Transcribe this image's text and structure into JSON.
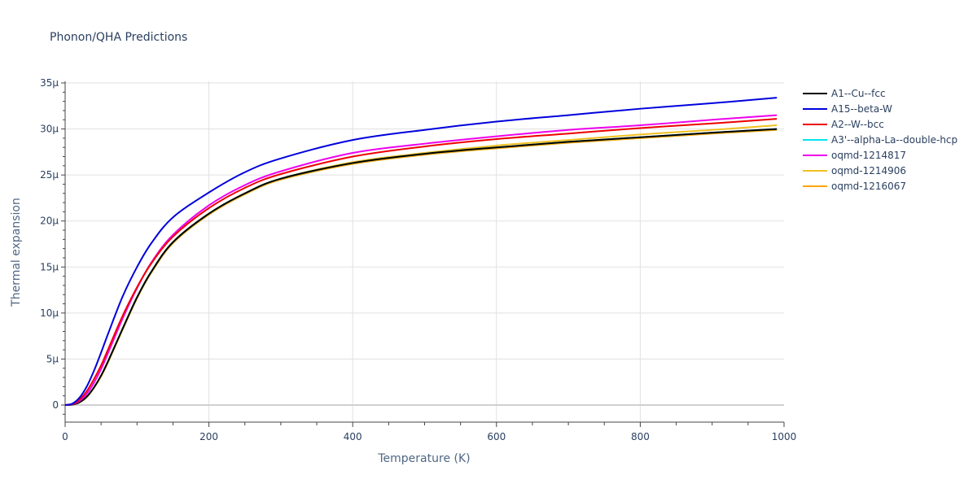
{
  "chart": {
    "title": "Phonon/QHA Predictions"
  },
  "chart_data": {
    "type": "line",
    "title": "Phonon/QHA Predictions",
    "xlabel": "Temperature (K)",
    "ylabel": "Thermal expansion",
    "xlim": [
      0,
      1000
    ],
    "ylim": [
      -1.8e-06,
      3.5e-05
    ],
    "x_ticks": [
      0,
      200,
      400,
      600,
      800,
      1000
    ],
    "x_tick_labels": [
      "0",
      "200",
      "400",
      "600",
      "800",
      "1000"
    ],
    "y_ticks": [
      0,
      5e-06,
      1e-05,
      1.5e-05,
      2e-05,
      2.5e-05,
      3e-05,
      3.5e-05
    ],
    "y_tick_labels": [
      "0",
      "5μ",
      "10μ",
      "15μ",
      "20μ",
      "25μ",
      "30μ",
      "35μ"
    ],
    "grid": true,
    "legend_position": "right",
    "x": [
      0,
      10,
      20,
      30,
      40,
      50,
      60,
      80,
      100,
      120,
      150,
      200,
      250,
      300,
      400,
      500,
      600,
      700,
      800,
      900,
      990
    ],
    "series": [
      {
        "name": "A1--Cu--fcc",
        "color": "#000000",
        "values": [
          0,
          0.05,
          0.3,
          0.9,
          1.9,
          3.2,
          4.8,
          8.3,
          11.7,
          14.5,
          17.7,
          20.8,
          23.0,
          24.6,
          26.3,
          27.3,
          28.0,
          28.6,
          29.1,
          29.6,
          30.0
        ]
      },
      {
        "name": "A15--beta-W",
        "color": "#0000dd",
        "values": [
          0,
          0.15,
          0.8,
          2.0,
          3.7,
          5.7,
          7.8,
          11.8,
          15.0,
          17.6,
          20.4,
          23.1,
          25.3,
          26.8,
          28.8,
          29.9,
          30.8,
          31.5,
          32.2,
          32.8,
          33.4
        ]
      },
      {
        "name": "A2--W--bcc",
        "color": "#ee0000",
        "values": [
          0,
          0.1,
          0.6,
          1.5,
          2.8,
          4.3,
          6.1,
          9.7,
          12.8,
          15.4,
          18.3,
          21.4,
          23.6,
          25.1,
          27.0,
          28.1,
          28.9,
          29.5,
          30.1,
          30.6,
          31.1
        ]
      },
      {
        "name": "A3'--alpha-La--double-hcp",
        "color": "#00e5ee",
        "values": [
          0,
          0.05,
          0.3,
          0.9,
          1.9,
          3.2,
          4.8,
          8.3,
          11.7,
          14.5,
          17.7,
          20.8,
          23.0,
          24.6,
          26.3,
          27.3,
          28.0,
          28.6,
          29.1,
          29.6,
          30.0
        ]
      },
      {
        "name": "oqmd-1214817",
        "color": "#ee00ee",
        "values": [
          0,
          0.08,
          0.45,
          1.2,
          2.4,
          3.9,
          5.7,
          9.4,
          12.7,
          15.5,
          18.5,
          21.7,
          23.9,
          25.4,
          27.4,
          28.4,
          29.2,
          29.9,
          30.4,
          31.0,
          31.5
        ]
      },
      {
        "name": "oqmd-1214906",
        "color": "#f0c020",
        "values": [
          0,
          0.05,
          0.3,
          0.9,
          1.9,
          3.2,
          4.8,
          8.3,
          11.7,
          14.5,
          17.7,
          20.8,
          23.0,
          24.6,
          26.4,
          27.4,
          28.2,
          28.8,
          29.4,
          29.9,
          30.4
        ]
      },
      {
        "name": "oqmd-1216067",
        "color": "#ffa500",
        "values": [
          0,
          0.04,
          0.28,
          0.85,
          1.85,
          3.1,
          4.7,
          8.2,
          11.6,
          14.4,
          17.6,
          20.7,
          22.9,
          24.5,
          26.2,
          27.2,
          27.9,
          28.5,
          29.0,
          29.5,
          29.9
        ]
      }
    ],
    "y_units": "μ (×1e-6)"
  }
}
